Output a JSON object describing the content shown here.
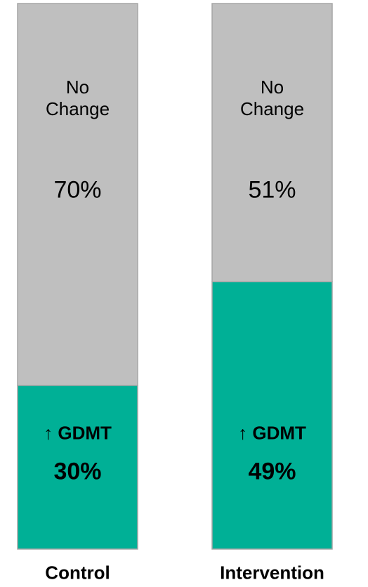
{
  "chart_data": {
    "type": "stacked_bar_100",
    "categories": [
      "Control",
      "Intervention"
    ],
    "series": [
      {
        "name": "↑ GDMT",
        "color": "#00b096",
        "values": [
          30,
          49
        ],
        "value_labels": [
          "30%",
          "49%"
        ]
      },
      {
        "name": "No Change",
        "color": "#bfbfbf",
        "values": [
          70,
          51
        ],
        "value_labels": [
          "70%",
          "51%"
        ]
      }
    ]
  }
}
